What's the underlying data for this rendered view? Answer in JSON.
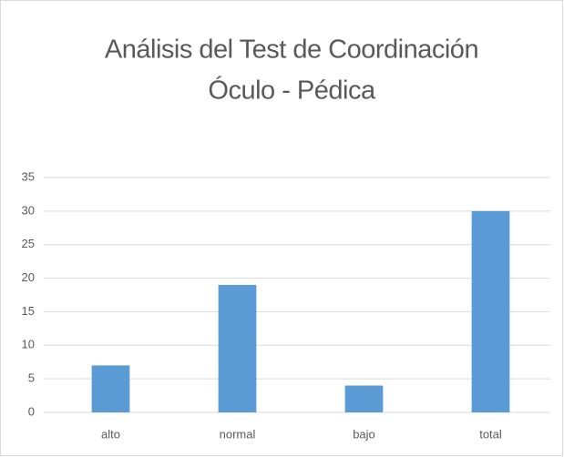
{
  "chart_data": {
    "type": "bar",
    "title": [
      "Análisis del Test de Coordinación",
      "Óculo - Pédica"
    ],
    "categories": [
      "alto",
      "normal",
      "bajo",
      "total"
    ],
    "values": [
      7,
      19,
      4,
      30
    ],
    "color": "#5b9bd5",
    "ylim": [
      0,
      35
    ],
    "yticks": [
      0,
      5,
      10,
      15,
      20,
      25,
      30,
      35
    ],
    "grid": true
  }
}
